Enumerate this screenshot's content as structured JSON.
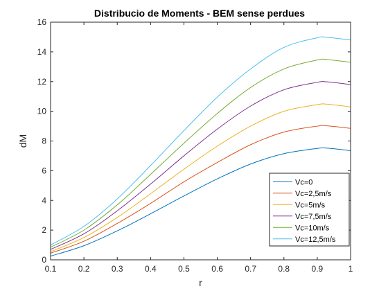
{
  "chart_data": {
    "type": "line",
    "title": "Distribucio de Moments - BEM sense perdues",
    "xlabel": "r",
    "ylabel": "dM",
    "xlim": [
      0.1,
      1
    ],
    "ylim": [
      0,
      16
    ],
    "x_ticks": [
      "0.1",
      "0.2",
      "0.3",
      "0.4",
      "0.5",
      "0.6",
      "0.7",
      "0.8",
      "0.9",
      "1"
    ],
    "y_ticks": [
      "0",
      "2",
      "4",
      "6",
      "8",
      "10",
      "12",
      "14",
      "16"
    ],
    "grid": false,
    "legend_position": "bottom-right",
    "x": [
      0.1,
      0.2,
      0.3,
      0.4,
      0.5,
      0.6,
      0.7,
      0.8,
      0.9,
      0.93,
      1.0
    ],
    "series": [
      {
        "name": "Vc=0",
        "color": "#0072BD",
        "values": [
          0.25,
          0.95,
          1.95,
          3.1,
          4.3,
          5.45,
          6.45,
          7.15,
          7.5,
          7.52,
          7.35
        ]
      },
      {
        "name": "Vc=2,5m/s",
        "color": "#D95319",
        "values": [
          0.45,
          1.25,
          2.45,
          3.8,
          5.25,
          6.55,
          7.75,
          8.6,
          9.0,
          9.02,
          8.85
        ]
      },
      {
        "name": "Vc=5m/s",
        "color": "#EDB120",
        "values": [
          0.55,
          1.5,
          2.85,
          4.45,
          6.1,
          7.65,
          9.0,
          10.0,
          10.45,
          10.48,
          10.3
        ]
      },
      {
        "name": "Vc=7,5m/s",
        "color": "#7E2F8E",
        "values": [
          0.7,
          1.75,
          3.3,
          5.1,
          7.0,
          8.8,
          10.35,
          11.45,
          11.95,
          11.98,
          11.8
        ]
      },
      {
        "name": "Vc=10m/s",
        "color": "#77AC30",
        "values": [
          0.85,
          2.0,
          3.7,
          5.75,
          7.85,
          9.85,
          11.6,
          12.85,
          13.45,
          13.48,
          13.3
        ]
      },
      {
        "name": "Vc=12,5m/s",
        "color": "#4DBEEE",
        "values": [
          1.0,
          2.25,
          4.1,
          6.35,
          8.7,
          10.95,
          12.85,
          14.3,
          14.95,
          14.98,
          14.8
        ]
      }
    ]
  }
}
